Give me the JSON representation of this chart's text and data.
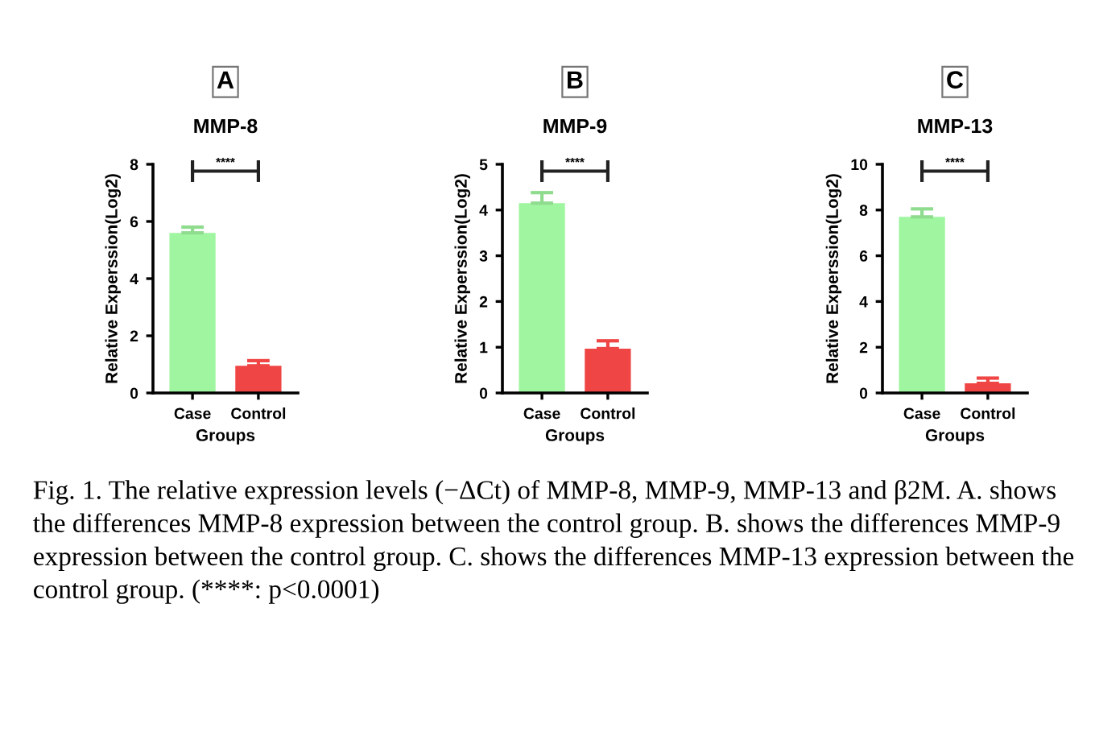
{
  "chart_data": [
    {
      "type": "bar",
      "title": "MMP-8",
      "xlabel": "Groups",
      "ylabel": "Relative Experssion(Log2)",
      "categories": [
        "Case",
        "Control"
      ],
      "values": [
        5.6,
        0.95
      ],
      "colors": [
        "#a0f5a0",
        "#f04545"
      ],
      "errors": [
        [
          5.6,
          5.8
        ],
        [
          0.95,
          1.13
        ]
      ],
      "ylim": [
        0,
        8
      ],
      "yticks": [
        0,
        2,
        4,
        6,
        8
      ],
      "grid": false,
      "legend": false,
      "annotations": [
        "A",
        "****"
      ]
    },
    {
      "type": "bar",
      "title": "MMP-9",
      "xlabel": "Groups",
      "ylabel": "Relative Experssion(Log2)",
      "categories": [
        "Case",
        "Control"
      ],
      "values": [
        4.15,
        0.97
      ],
      "colors": [
        "#a0f5a0",
        "#f04545"
      ],
      "errors": [
        [
          4.15,
          4.38
        ],
        [
          0.97,
          1.14
        ]
      ],
      "ylim": [
        0,
        5
      ],
      "yticks": [
        0,
        1,
        2,
        3,
        4,
        5
      ],
      "grid": false,
      "legend": false,
      "annotations": [
        "B",
        "****"
      ]
    },
    {
      "type": "bar",
      "title": "MMP-13",
      "xlabel": "Groups",
      "ylabel": "Relative Experssion(Log2)",
      "categories": [
        "Case",
        "Control"
      ],
      "values": [
        7.7,
        0.42
      ],
      "colors": [
        "#a0f5a0",
        "#f04545"
      ],
      "errors": [
        [
          7.7,
          8.05
        ],
        [
          0.42,
          0.65
        ]
      ],
      "ylim": [
        0,
        10
      ],
      "yticks": [
        0,
        2,
        4,
        6,
        8,
        10
      ],
      "grid": false,
      "legend": false,
      "annotations": [
        "C",
        "****",
        "Fig. 1. The relative expression levels (−ΔCt) of MMP-8, MMP-9, MMP-13 and β2M. A. shows the differences MMP-8 expression between the control group. B. shows the differences MMP-9 expression between the control group. C. shows the differences MMP-13 expression between the control group. (****: p<0.0001)"
      ]
    }
  ]
}
